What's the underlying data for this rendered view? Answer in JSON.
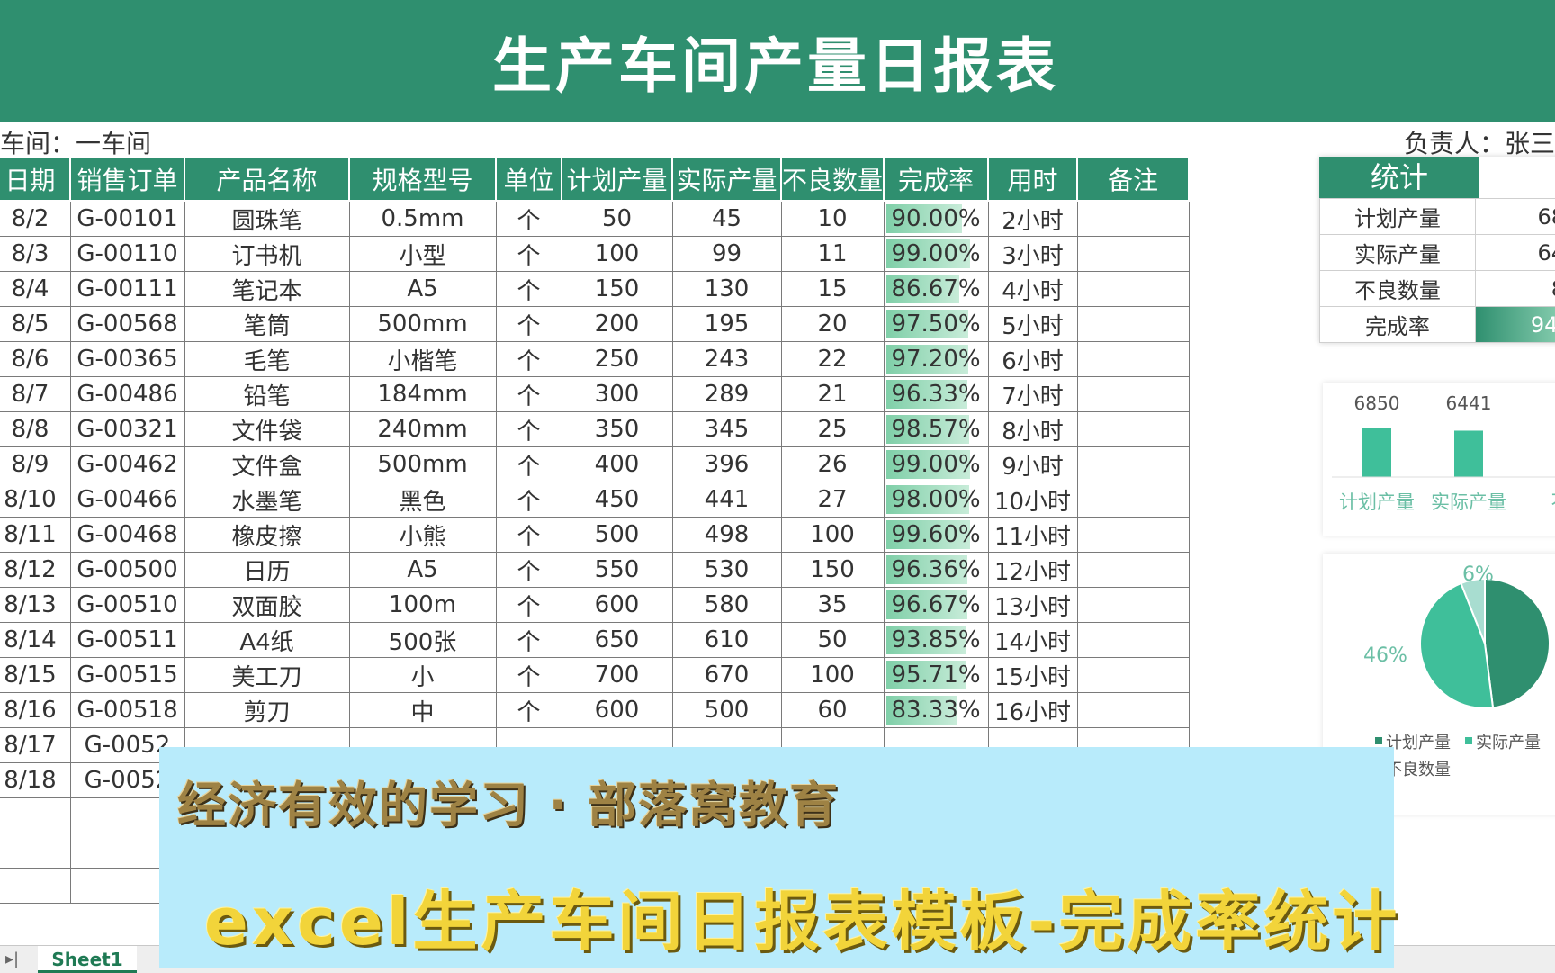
{
  "title": "生产车间产量日报表",
  "workshop": "车间：一车间",
  "owner": "负责人：张三",
  "columns": [
    "日期",
    "销售订单",
    "产品名称",
    "规格型号",
    "单位",
    "计划产量",
    "实际产量",
    "不良数量",
    "完成率",
    "用时",
    "备注"
  ],
  "rows": [
    [
      "8/2",
      "G-00101",
      "圆珠笔",
      "0.5mm",
      "个",
      "50",
      "45",
      "10",
      "90.00%",
      "2小时",
      ""
    ],
    [
      "8/3",
      "G-00110",
      "订书机",
      "小型",
      "个",
      "100",
      "99",
      "11",
      "99.00%",
      "3小时",
      ""
    ],
    [
      "8/4",
      "G-00111",
      "笔记本",
      "A5",
      "个",
      "150",
      "130",
      "15",
      "86.67%",
      "4小时",
      ""
    ],
    [
      "8/5",
      "G-00568",
      "笔筒",
      "500mm",
      "个",
      "200",
      "195",
      "20",
      "97.50%",
      "5小时",
      ""
    ],
    [
      "8/6",
      "G-00365",
      "毛笔",
      "小楷笔",
      "个",
      "250",
      "243",
      "22",
      "97.20%",
      "6小时",
      ""
    ],
    [
      "8/7",
      "G-00486",
      "铅笔",
      "184mm",
      "个",
      "300",
      "289",
      "21",
      "96.33%",
      "7小时",
      ""
    ],
    [
      "8/8",
      "G-00321",
      "文件袋",
      "240mm",
      "个",
      "350",
      "345",
      "25",
      "98.57%",
      "8小时",
      ""
    ],
    [
      "8/9",
      "G-00462",
      "文件盒",
      "500mm",
      "个",
      "400",
      "396",
      "26",
      "99.00%",
      "9小时",
      ""
    ],
    [
      "8/10",
      "G-00466",
      "水墨笔",
      "黑色",
      "个",
      "450",
      "441",
      "27",
      "98.00%",
      "10小时",
      ""
    ],
    [
      "8/11",
      "G-00468",
      "橡皮擦",
      "小熊",
      "个",
      "500",
      "498",
      "100",
      "99.60%",
      "11小时",
      ""
    ],
    [
      "8/12",
      "G-00500",
      "日历",
      "A5",
      "个",
      "550",
      "530",
      "150",
      "96.36%",
      "12小时",
      ""
    ],
    [
      "8/13",
      "G-00510",
      "双面胶",
      "100m",
      "个",
      "600",
      "580",
      "35",
      "96.67%",
      "13小时",
      ""
    ],
    [
      "8/14",
      "G-00511",
      "A4纸",
      "500张",
      "个",
      "650",
      "610",
      "50",
      "93.85%",
      "14小时",
      ""
    ],
    [
      "8/15",
      "G-00515",
      "美工刀",
      "小",
      "个",
      "700",
      "670",
      "100",
      "95.71%",
      "15小时",
      ""
    ],
    [
      "8/16",
      "G-00518",
      "剪刀",
      "中",
      "个",
      "600",
      "500",
      "60",
      "83.33%",
      "16小时",
      ""
    ],
    [
      "8/17",
      "G-0052",
      "",
      "",
      "",
      "",
      "",
      "",
      "",
      "",
      ""
    ],
    [
      "8/18",
      "G-0052",
      "",
      "",
      "",
      "",
      "",
      "",
      "",
      "",
      ""
    ]
  ],
  "rates": [
    0.9,
    0.99,
    0.8667,
    0.975,
    0.972,
    0.9633,
    0.9857,
    0.99,
    0.98,
    0.996,
    0.9636,
    0.9667,
    0.9385,
    0.9571,
    0.8333,
    0,
    0
  ],
  "stats": {
    "title": "统计",
    "items": [
      {
        "k": "计划产量",
        "v": "68"
      },
      {
        "k": "实际产量",
        "v": "64"
      },
      {
        "k": "不良数量",
        "v": "8"
      },
      {
        "k": "完成率",
        "v": "94."
      }
    ]
  },
  "chart_data": [
    {
      "type": "bar",
      "categories": [
        "计划产量",
        "实际产量",
        "不"
      ],
      "values": [
        6850,
        6441,
        null
      ]
    },
    {
      "type": "pie",
      "labels_shown": [
        "6%",
        "46%"
      ],
      "legend": [
        "计划产量",
        "实际产量",
        "不良数量"
      ],
      "colors": [
        "#2f8f6f",
        "#3fbf9a",
        "#a8ddd0"
      ]
    }
  ],
  "sheet_tab": "Sheet1",
  "banner": {
    "line1": "经济有效的学习 · 部落窝教育",
    "line2": "excel生产车间日报表模板-完成率统计"
  }
}
